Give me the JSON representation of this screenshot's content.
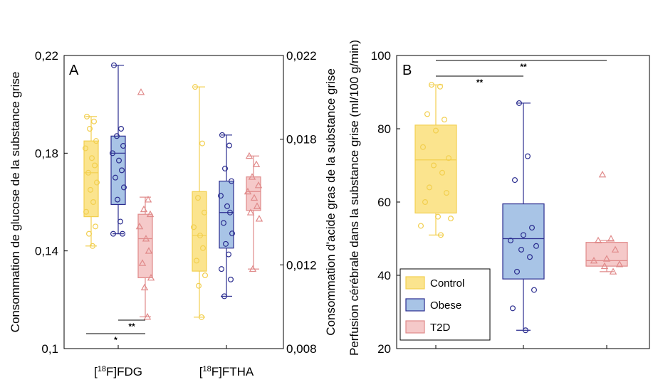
{
  "colors": {
    "control": {
      "fill": "#fbe48e",
      "stroke": "#f2cf4f"
    },
    "obese": {
      "fill": "#a8c4e6",
      "stroke": "#2b2d8f"
    },
    "t2d": {
      "fill": "#f5c9c9",
      "stroke": "#e08a8a"
    }
  },
  "chart_data": [
    {
      "type": "box",
      "panel_label": "A",
      "categories": [
        "[18F]FDG",
        "[18F]FTHA"
      ],
      "category_labels": [
        {
          "pre": "[",
          "sup": "18",
          "post": "F]FDG"
        },
        {
          "pre": "[",
          "sup": "18",
          "post": "F]FTHA"
        }
      ],
      "ylabel": "Consommation de glucose de la substance grise",
      "ylim": [
        0.1,
        0.22
      ],
      "yticks": [
        "0,1",
        "0,14",
        "0,18",
        "0,22"
      ],
      "y2label": "Consommation d'acide gras de la substance grise",
      "y2lim": [
        0.008,
        0.022
      ],
      "y2ticks": [
        "0,008",
        "0,012",
        "0,018",
        "0,022"
      ],
      "series": [
        {
          "name": "Control",
          "markers": "circle",
          "FDG": {
            "min": 0.142,
            "q1": 0.154,
            "median": 0.172,
            "q3": 0.185,
            "max": 0.195,
            "points": [
              0.195,
              0.193,
              0.19,
              0.185,
              0.182,
              0.178,
              0.175,
              0.172,
              0.168,
              0.165,
              0.16,
              0.156,
              0.15,
              0.147,
              0.142
            ]
          },
          "FTHA": {
            "min": 0.0095,
            "q1": 0.0117,
            "median": 0.0134,
            "q3": 0.0155,
            "max": 0.0205,
            "points": [
              0.0205,
              0.0178,
              0.0152,
              0.0145,
              0.0138,
              0.0134,
              0.0128,
              0.0122,
              0.0115,
              0.011,
              0.0095
            ]
          }
        },
        {
          "name": "Obese",
          "markers": "circle",
          "FDG": {
            "min": 0.147,
            "q1": 0.159,
            "median": 0.18,
            "q3": 0.187,
            "max": 0.216,
            "points": [
              0.216,
              0.19,
              0.187,
              0.183,
              0.18,
              0.177,
              0.173,
              0.17,
              0.166,
              0.161,
              0.152,
              0.147,
              0.147
            ]
          },
          "FTHA": {
            "min": 0.0105,
            "q1": 0.0128,
            "median": 0.0145,
            "q3": 0.016,
            "max": 0.0182,
            "points": [
              0.0182,
              0.0177,
              0.0166,
              0.016,
              0.0153,
              0.0148,
              0.0145,
              0.014,
              0.0135,
              0.013,
              0.0125,
              0.0118,
              0.0113,
              0.0105
            ]
          }
        },
        {
          "name": "T2D",
          "markers": "triangle",
          "FDG": {
            "min": 0.113,
            "q1": 0.129,
            "median": 0.145,
            "q3": 0.155,
            "max": 0.162,
            "points": [
              0.205,
              0.161,
              0.157,
              0.155,
              0.15,
              0.145,
              0.14,
              0.135,
              0.129,
              0.125,
              0.113
            ]
          },
          "FTHA": {
            "min": 0.0118,
            "q1": 0.0146,
            "median": 0.0155,
            "q3": 0.0162,
            "max": 0.0172,
            "points": [
              0.0172,
              0.0168,
              0.0162,
              0.0158,
              0.0155,
              0.0152,
              0.0148,
              0.0145,
              0.0142,
              0.0118
            ]
          }
        }
      ],
      "significance": [
        {
          "label": "**",
          "between": [
            "Obese",
            "T2D"
          ],
          "category": "[18F]FDG"
        },
        {
          "label": "*",
          "between": [
            "Control",
            "T2D"
          ],
          "category": "[18F]FDG"
        }
      ]
    },
    {
      "type": "box",
      "panel_label": "B",
      "categories": [
        "Control",
        "Obese",
        "T2D"
      ],
      "ylabel": "Perfusion cérébrale dans la substance grise (ml/100 g/min)",
      "ylim": [
        20,
        100
      ],
      "yticks": [
        "20",
        "40",
        "60",
        "80",
        "100"
      ],
      "series": [
        {
          "name": "Control",
          "markers": "circle",
          "min": 51,
          "q1": 57,
          "median": 71.5,
          "q3": 81,
          "max": 92,
          "points": [
            92,
            91.5,
            84,
            82.5,
            79.5,
            75,
            72,
            70,
            68,
            64,
            62.5,
            60,
            56,
            55.5,
            53.5,
            51
          ]
        },
        {
          "name": "Obese",
          "markers": "circle",
          "min": 25,
          "q1": 39,
          "median": 50,
          "q3": 59.5,
          "max": 87,
          "points": [
            87,
            72.5,
            66,
            53,
            51,
            49.5,
            48,
            47,
            45,
            41,
            36,
            31,
            25
          ]
        },
        {
          "name": "T2D",
          "markers": "triangle",
          "min": 41,
          "q1": 42.5,
          "median": 44,
          "q3": 49,
          "max": 49.5,
          "points": [
            67.5,
            50,
            49.5,
            47,
            44.5,
            44,
            43,
            42.5,
            41
          ]
        }
      ],
      "significance": [
        {
          "label": "**",
          "between": [
            "Control",
            "Obese"
          ]
        },
        {
          "label": "**",
          "between": [
            "Control",
            "T2D"
          ]
        }
      ],
      "legend": {
        "position": "bottom-left",
        "entries": [
          "Control",
          "Obese",
          "T2D"
        ]
      }
    }
  ]
}
